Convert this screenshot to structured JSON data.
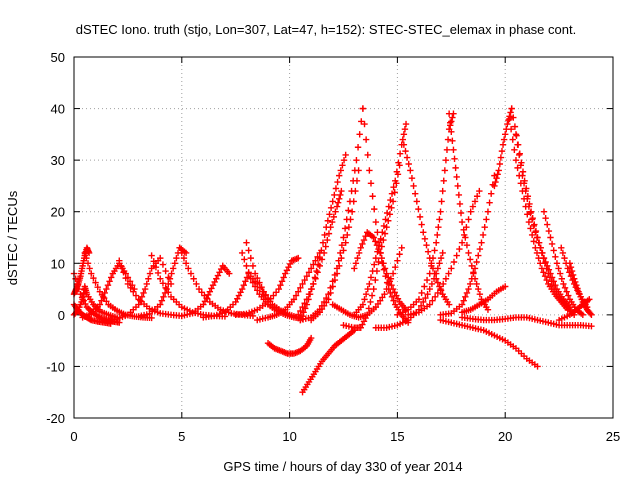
{
  "chart_data": {
    "type": "scatter",
    "title": "dSTEC Iono. truth (stjo, Lon=307, Lat=47, h=152): STEC-STEC_elemax in phase cont.",
    "xlabel": "GPS time / hours of day 330 of year 2014",
    "ylabel": "dSTEC  / TECUs",
    "xlim": [
      0,
      25
    ],
    "ylim": [
      -20,
      50
    ],
    "xticks": [
      0,
      5,
      10,
      15,
      20,
      25
    ],
    "yticks": [
      -20,
      -10,
      0,
      10,
      20,
      30,
      40,
      50
    ],
    "xtick_labels": [
      "0",
      "5",
      "10",
      "15",
      "20",
      "25"
    ],
    "ytick_labels": [
      "-20",
      "-10",
      "0",
      "10",
      "20",
      "30",
      "40",
      "50"
    ],
    "grid": true,
    "legend": "none",
    "marker": "plus",
    "color": "#ff0000",
    "series": [
      {
        "x": [
          0.0,
          0.3,
          0.6,
          0.9,
          1.2,
          1.5,
          1.8,
          2.1
        ],
        "y": [
          8,
          4,
          1.5,
          0.3,
          -0.5,
          -1,
          -1.3,
          -1.5
        ]
      },
      {
        "x": [
          0.0,
          0.2,
          0.4,
          0.6,
          0.8,
          1.1,
          1.4,
          1.7
        ],
        "y": [
          2,
          0.8,
          0,
          -0.5,
          -1,
          -1.3,
          -1.5,
          -1.7
        ]
      },
      {
        "x": [
          0.0,
          0.2,
          0.4,
          0.5,
          0.6,
          0.9,
          1.2,
          1.6,
          2.0
        ],
        "y": [
          0,
          1,
          3,
          5.5,
          4,
          2,
          0.7,
          0,
          -0.5
        ]
      },
      {
        "x": [
          0.0,
          0.1,
          0.2,
          0.3,
          0.4,
          0.5,
          0.6,
          0.7
        ],
        "y": [
          4,
          5,
          6,
          7.5,
          9.5,
          11.5,
          13,
          12
        ]
      },
      {
        "x": [
          0.5,
          0.8,
          1.2,
          1.6,
          2.0,
          2.4,
          2.8,
          3.2,
          3.6
        ],
        "y": [
          12,
          8,
          4.5,
          2,
          0.8,
          0,
          -0.3,
          -0.5,
          -0.6
        ]
      },
      {
        "x": [
          0.4,
          0.8,
          1.2,
          1.5,
          1.8,
          2.1,
          2.4,
          2.8
        ],
        "y": [
          -0.5,
          0.2,
          2,
          5,
          8,
          10,
          8,
          5
        ]
      },
      {
        "x": [
          2.1,
          2.5,
          3.0,
          3.5,
          4.0,
          4.5,
          5.0
        ],
        "y": [
          10.5,
          6,
          3,
          1.2,
          0.3,
          0,
          -0.2
        ]
      },
      {
        "x": [
          1.5,
          2.0,
          2.5,
          3.0,
          3.3,
          3.6,
          4.0,
          4.5
        ],
        "y": [
          -1,
          -0.8,
          0,
          2,
          5,
          9,
          11,
          6
        ]
      },
      {
        "x": [
          3.6,
          4.0,
          4.5,
          5.0,
          5.5,
          6.0,
          6.5,
          7.0
        ],
        "y": [
          11.5,
          7,
          3.5,
          1.5,
          0.5,
          0,
          -0.2,
          -0.3
        ]
      },
      {
        "x": [
          3.0,
          3.5,
          4.0,
          4.3,
          4.6,
          4.9,
          5.2
        ],
        "y": [
          -0.3,
          0.2,
          2,
          5,
          9,
          13,
          12
        ]
      },
      {
        "x": [
          4.9,
          5.3,
          5.8,
          6.3,
          6.8,
          7.3,
          7.8,
          8.3
        ],
        "y": [
          13,
          9,
          5,
          2.5,
          1,
          0.3,
          0,
          -0.2
        ]
      },
      {
        "x": [
          5.0,
          5.5,
          6.0,
          6.3,
          6.6,
          6.9,
          7.2
        ],
        "y": [
          -0.2,
          0.3,
          2,
          4.5,
          7,
          9.5,
          8
        ]
      },
      {
        "x": [
          6.0,
          6.5,
          7.0,
          7.5,
          7.8,
          8.1,
          8.5,
          9.0
        ],
        "y": [
          -0.5,
          -0.2,
          0.5,
          2.5,
          5,
          8,
          6,
          3
        ]
      },
      {
        "x": [
          7.8,
          8.2,
          8.6,
          9.0,
          9.4,
          9.8,
          10.2,
          10.6
        ],
        "y": [
          12,
          7,
          4,
          2,
          0.8,
          0,
          -0.5,
          -0.8
        ]
      },
      {
        "x": [
          7.5,
          8.0,
          8.5,
          9.0,
          9.5,
          9.8,
          10.1,
          10.4
        ],
        "y": [
          0,
          0.2,
          1,
          2.5,
          5,
          8,
          10.5,
          11
        ]
      },
      {
        "x": [
          8.0,
          8.4,
          8.8,
          9.2,
          9.6,
          10.0,
          10.4
        ],
        "y": [
          14,
          8,
          4.5,
          2,
          0.8,
          0,
          -0.5
        ]
      },
      {
        "x": [
          8.5,
          9.0,
          9.4,
          9.8,
          10.2,
          10.6,
          11.0,
          11.4
        ],
        "y": [
          -1,
          -0.5,
          0,
          1,
          3,
          6,
          9,
          12
        ]
      },
      {
        "x": [
          9.0,
          9.3,
          9.6,
          9.9,
          10.2,
          10.5,
          10.8,
          11.0
        ],
        "y": [
          -5.5,
          -6.5,
          -7,
          -7.5,
          -7.5,
          -7,
          -6,
          -4.5
        ]
      },
      {
        "x": [
          10.6,
          10.9,
          11.2,
          11.5,
          11.8,
          12.1,
          12.4,
          12.7,
          13.0
        ],
        "y": [
          -15,
          -13,
          -11,
          -9,
          -7.5,
          -6,
          -5,
          -4,
          -3
        ]
      },
      {
        "x": [
          10.5,
          10.8,
          11.1,
          11.4,
          11.7,
          12.0,
          12.3,
          12.6
        ],
        "y": [
          -1,
          2,
          6,
          11,
          17,
          22,
          27,
          31
        ]
      },
      {
        "x": [
          10.4,
          10.8,
          11.2,
          11.6,
          11.9,
          12.2,
          12.4
        ],
        "y": [
          0,
          3,
          7,
          12,
          17,
          21,
          24
        ]
      },
      {
        "x": [
          10.5,
          11.0,
          11.4,
          11.8,
          12.2,
          12.5,
          12.8,
          13.1,
          13.4
        ],
        "y": [
          -1,
          -0.5,
          1,
          4,
          9,
          15,
          22,
          30,
          40
        ]
      },
      {
        "x": [
          11.0,
          11.4,
          11.8,
          12.2,
          12.6,
          12.9,
          13.2
        ],
        "y": [
          -1,
          0.5,
          3,
          8,
          14,
          20,
          28
        ]
      },
      {
        "x": [
          13.4,
          13.7,
          14.0,
          14.3,
          14.6,
          14.9,
          15.2,
          15.5
        ],
        "y": [
          40,
          28,
          18,
          10,
          5,
          2,
          0,
          -1.5
        ]
      },
      {
        "x": [
          12.0,
          12.4,
          12.8,
          13.2,
          13.6,
          14.0,
          14.4,
          14.8,
          15.2
        ],
        "y": [
          2,
          1,
          0,
          -0.5,
          0,
          1.5,
          4,
          8,
          13
        ]
      },
      {
        "x": [
          12.5,
          13.0,
          13.3,
          13.6,
          13.9,
          14.2,
          14.5,
          14.8,
          15.1
        ],
        "y": [
          -2,
          -2.5,
          -2.5,
          0,
          5,
          12,
          17,
          22,
          29
        ]
      },
      {
        "x": [
          13.0,
          13.4,
          13.7,
          14.0,
          14.3,
          14.6,
          14.9,
          15.2,
          15.4
        ],
        "y": [
          0,
          2,
          6,
          11,
          16,
          21,
          26,
          33,
          37
        ]
      },
      {
        "x": [
          13.0,
          13.3,
          13.6,
          13.9,
          14.2,
          14.5,
          14.8,
          15.1,
          15.4
        ],
        "y": [
          9,
          13,
          16,
          15,
          12,
          8,
          5,
          2.5,
          1
        ]
      },
      {
        "x": [
          15.3,
          15.6,
          15.9,
          16.2,
          16.5,
          16.8,
          17.1,
          17.4
        ],
        "y": [
          33,
          28,
          22,
          16,
          11,
          7,
          4,
          2
        ]
      },
      {
        "x": [
          14.0,
          14.5,
          15.0,
          15.5,
          16.0,
          16.4,
          16.8,
          17.1
        ],
        "y": [
          -2.5,
          -2.5,
          -2,
          -1,
          1,
          4,
          8,
          12
        ]
      },
      {
        "x": [
          15.0,
          15.5,
          16.0,
          16.5,
          16.8,
          17.0,
          17.2,
          17.4,
          17.6
        ],
        "y": [
          0,
          1,
          3,
          8,
          14,
          20,
          28,
          36,
          39
        ]
      },
      {
        "x": [
          17.4,
          17.6,
          17.8,
          18.0,
          18.3,
          18.6,
          18.9,
          19.2
        ],
        "y": [
          39,
          32,
          25,
          18,
          12,
          7,
          3,
          1
        ]
      },
      {
        "x": [
          15.5,
          16.0,
          16.5,
          17.0,
          17.5,
          18.0,
          18.4,
          18.8
        ],
        "y": [
          0,
          0.5,
          2,
          5,
          9,
          14,
          20,
          24
        ]
      },
      {
        "x": [
          17.0,
          17.5,
          18.0,
          18.3,
          18.6,
          18.9,
          19.2,
          19.5
        ],
        "y": [
          0,
          0.3,
          2,
          5,
          9,
          14,
          20,
          27
        ]
      },
      {
        "x": [
          18.0,
          18.4,
          18.8,
          19.2,
          19.6,
          20.0
        ],
        "y": [
          0.5,
          1,
          2,
          3,
          4.5,
          5.5
        ]
      },
      {
        "x": [
          17.0,
          17.5,
          18.0,
          18.5,
          19.0,
          19.5,
          20.0,
          20.5,
          21.0,
          21.5
        ],
        "y": [
          -1,
          -1.5,
          -2,
          -2.5,
          -3,
          -4,
          -5,
          -6.5,
          -8.5,
          -10
        ]
      },
      {
        "x": [
          19.5,
          19.7,
          19.9,
          20.1,
          20.3
        ],
        "y": [
          25,
          28,
          33,
          37,
          40
        ]
      },
      {
        "x": [
          20.3,
          20.6,
          20.9,
          21.2,
          21.5,
          21.8,
          22.1,
          22.4,
          22.7,
          23.0
        ],
        "y": [
          40,
          33,
          26,
          20,
          15,
          11,
          8,
          5,
          3,
          1.5
        ]
      },
      {
        "x": [
          20.2,
          20.5,
          20.8,
          21.1,
          21.4,
          21.7,
          22.0,
          22.3,
          22.6,
          22.9
        ],
        "y": [
          38,
          30,
          24,
          18,
          13,
          9,
          6,
          4,
          2.5,
          1
        ]
      },
      {
        "x": [
          20.5,
          20.8,
          21.1,
          21.4,
          21.7,
          22.0,
          22.3,
          22.6,
          22.9,
          23.2
        ],
        "y": [
          35,
          27,
          21,
          16,
          12,
          8,
          5,
          3,
          1.5,
          0
        ]
      },
      {
        "x": [
          21.8,
          22.1,
          22.4,
          22.7,
          23.0,
          23.3,
          23.6
        ],
        "y": [
          20,
          15,
          10,
          6,
          3,
          1,
          0
        ]
      },
      {
        "x": [
          22.6,
          22.9,
          23.2,
          23.5,
          23.8
        ],
        "y": [
          13,
          9,
          6,
          3.5,
          1.5
        ]
      },
      {
        "x": [
          23.0,
          23.2,
          23.4,
          23.6,
          23.8,
          24.0
        ],
        "y": [
          10,
          7,
          4.5,
          2.5,
          1,
          0
        ]
      },
      {
        "x": [
          18.0,
          18.5,
          19.0,
          19.5,
          20.0,
          20.5,
          21.0,
          21.5,
          22.0,
          22.5,
          23.0,
          23.5,
          24.0
        ],
        "y": [
          -0.5,
          -0.8,
          -1,
          -1,
          -0.8,
          -0.5,
          -0.5,
          -1,
          -1.5,
          -2,
          -2,
          -2,
          -2.2
        ]
      },
      {
        "x": [
          22.5,
          23.0,
          23.3,
          23.6,
          23.9
        ],
        "y": [
          -1,
          0,
          1,
          2,
          3
        ]
      }
    ]
  }
}
